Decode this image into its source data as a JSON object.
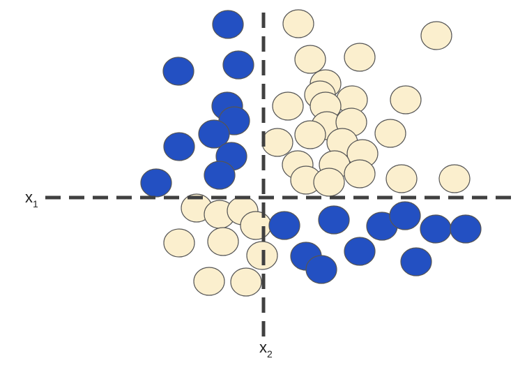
{
  "colors": {
    "class_blue": "#2350c2",
    "class_cream": "#fbefce",
    "outline": "#555555",
    "axis": "#404040"
  },
  "axes": {
    "x1": {
      "letter": "x",
      "subscript": "1"
    },
    "x2": {
      "letter": "x",
      "subscript": "2"
    }
  },
  "points": {
    "blue": [
      [
        327,
        35
      ],
      [
        256,
        102
      ],
      [
        342,
        93
      ],
      [
        326,
        152
      ],
      [
        336,
        173
      ],
      [
        307,
        192
      ],
      [
        257,
        210
      ],
      [
        332,
        224
      ],
      [
        315,
        251
      ],
      [
        224,
        262
      ],
      [
        408,
        323
      ],
      [
        479,
        315
      ],
      [
        548,
        324
      ],
      [
        581,
        309
      ],
      [
        625,
        328
      ],
      [
        668,
        328
      ],
      [
        516,
        360
      ],
      [
        439,
        367
      ],
      [
        461,
        386
      ],
      [
        597,
        375
      ]
    ],
    "cream": [
      [
        428,
        34
      ],
      [
        626,
        51
      ],
      [
        445,
        85
      ],
      [
        516,
        82
      ],
      [
        467,
        120
      ],
      [
        459,
        136
      ],
      [
        505,
        143
      ],
      [
        582,
        143
      ],
      [
        413,
        152
      ],
      [
        467,
        152
      ],
      [
        469,
        180
      ],
      [
        504,
        175
      ],
      [
        560,
        191
      ],
      [
        398,
        204
      ],
      [
        445,
        193
      ],
      [
        491,
        204
      ],
      [
        520,
        220
      ],
      [
        427,
        236
      ],
      [
        480,
        236
      ],
      [
        439,
        258
      ],
      [
        472,
        261
      ],
      [
        516,
        249
      ],
      [
        576,
        256
      ],
      [
        652,
        256
      ],
      [
        282,
        298
      ],
      [
        315,
        307
      ],
      [
        348,
        302
      ],
      [
        367,
        323
      ],
      [
        257,
        348
      ],
      [
        320,
        346
      ],
      [
        376,
        366
      ],
      [
        300,
        403
      ],
      [
        353,
        404
      ]
    ]
  }
}
